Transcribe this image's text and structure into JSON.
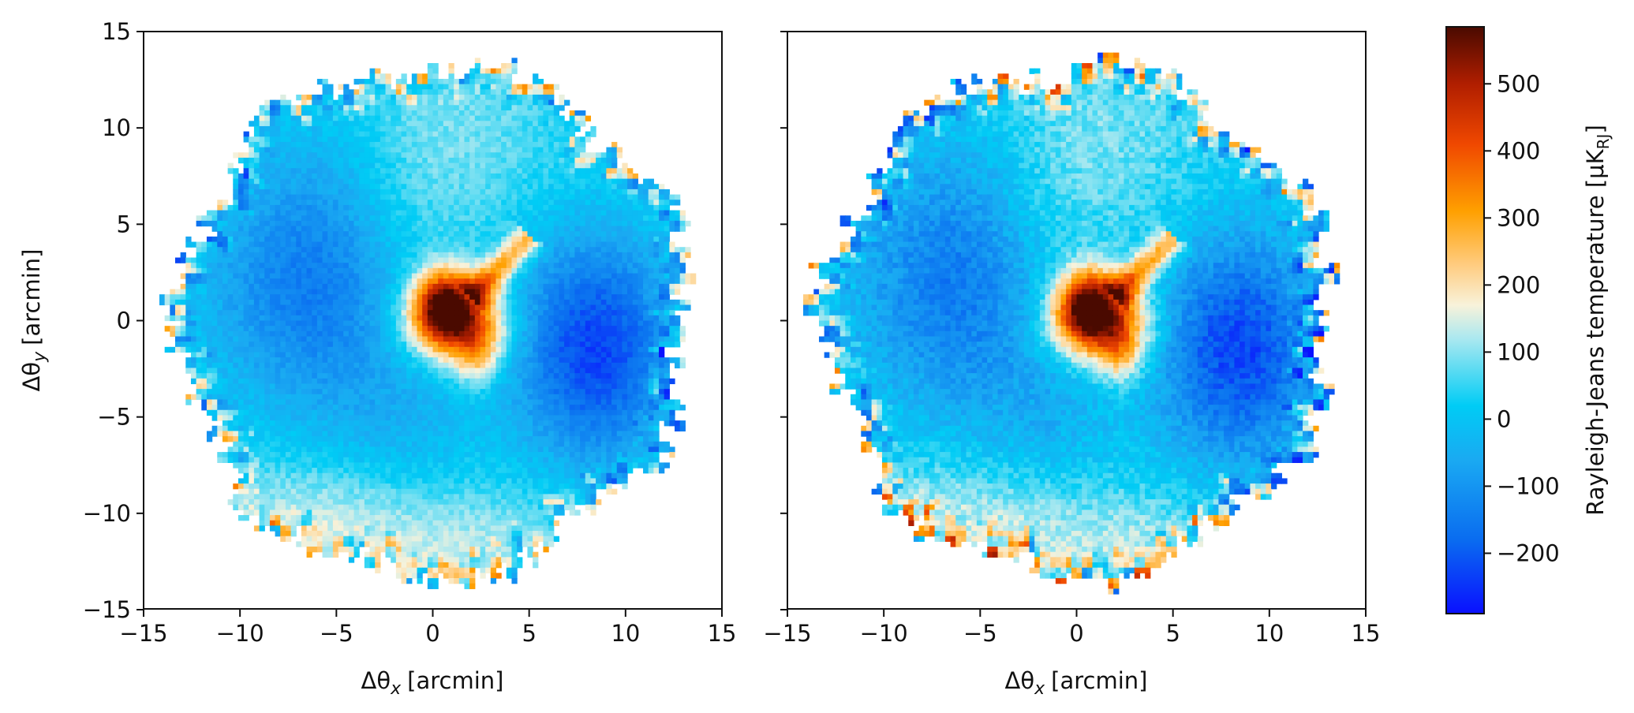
{
  "chart_data": [
    {
      "type": "heatmap",
      "panel": "left",
      "title": "",
      "xlabel": "Δθ",
      "xlabel_sub": "x",
      "xlabel_unit": "[arcmin]",
      "ylabel": "Δθ",
      "ylabel_sub": "y",
      "ylabel_unit": "[arcmin]",
      "xlim": [
        -15,
        15
      ],
      "ylim": [
        -15,
        15
      ],
      "xticks": [
        -15,
        -10,
        -5,
        0,
        5,
        10,
        15
      ],
      "yticks": [
        -15,
        -10,
        -5,
        0,
        5,
        10,
        15
      ],
      "xtick_labels": [
        "−15",
        "−10",
        "−5",
        "0",
        "5",
        "10",
        "15"
      ],
      "ytick_labels": [
        "−15",
        "−10",
        "−5",
        "0",
        "5",
        "10",
        "15"
      ],
      "show_ytick_labels": true,
      "footprint_radius": 13.7,
      "features": [
        {
          "kind": "peak",
          "x": 0.6,
          "y": 0.8,
          "value": 560
        },
        {
          "kind": "lobe",
          "x": 2.2,
          "y": -0.4,
          "value": 350
        },
        {
          "kind": "filament",
          "x": 4.0,
          "y": 3.0,
          "value": 330
        },
        {
          "kind": "decrement",
          "x": 8.5,
          "y": -1.5,
          "value": -230
        },
        {
          "kind": "decrement",
          "x": -6.0,
          "y": 2.0,
          "value": -150
        }
      ]
    },
    {
      "type": "heatmap",
      "panel": "right",
      "title": "",
      "xlabel": "Δθ",
      "xlabel_sub": "x",
      "xlabel_unit": "[arcmin]",
      "xlim": [
        -15,
        15
      ],
      "ylim": [
        -15,
        15
      ],
      "xticks": [
        -15,
        -10,
        -5,
        0,
        5,
        10,
        15
      ],
      "yticks": [
        -15,
        -10,
        -5,
        0,
        5,
        10,
        15
      ],
      "xtick_labels": [
        "−15",
        "−10",
        "−5",
        "0",
        "5",
        "10",
        "15"
      ],
      "show_ytick_labels": false,
      "footprint_radius": 13.7,
      "features": [
        {
          "kind": "peak",
          "x": 0.6,
          "y": 0.8,
          "value": 560
        },
        {
          "kind": "lobe",
          "x": 2.2,
          "y": -0.4,
          "value": 350
        },
        {
          "kind": "filament",
          "x": 4.0,
          "y": 3.0,
          "value": 330
        },
        {
          "kind": "decrement",
          "x": 8.5,
          "y": -1.5,
          "value": -230
        },
        {
          "kind": "decrement",
          "x": -6.0,
          "y": 2.0,
          "value": -150
        }
      ]
    }
  ],
  "colorbar": {
    "label": "Rayleigh-Jeans temperature [μK",
    "label_sub": "RJ",
    "label_end": "]",
    "range": [
      -290,
      585
    ],
    "ticks": [
      -200,
      -100,
      0,
      100,
      200,
      300,
      400,
      500
    ],
    "tick_labels": [
      "−200",
      "−100",
      "0",
      "100",
      "200",
      "300",
      "400",
      "500"
    ],
    "stops": [
      {
        "value": -290,
        "color": "#0a10ff"
      },
      {
        "value": -180,
        "color": "#0a6cf0"
      },
      {
        "value": -60,
        "color": "#1aaaf2"
      },
      {
        "value": 20,
        "color": "#00ccf5"
      },
      {
        "value": 120,
        "color": "#aae8f0"
      },
      {
        "value": 170,
        "color": "#f8f2da"
      },
      {
        "value": 230,
        "color": "#ffcc80"
      },
      {
        "value": 310,
        "color": "#ffa000"
      },
      {
        "value": 410,
        "color": "#f04800"
      },
      {
        "value": 500,
        "color": "#b01e00"
      },
      {
        "value": 585,
        "color": "#4a0a00"
      }
    ]
  }
}
